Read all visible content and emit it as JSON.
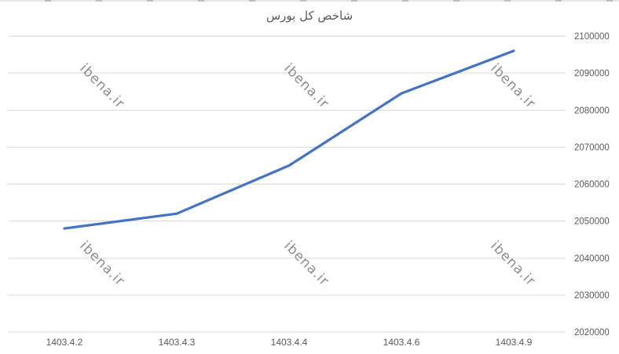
{
  "watermark": {
    "text": "ibena.ir",
    "color": "#8c8c8c"
  },
  "chart_data": {
    "type": "line",
    "title": "شاخص کل بورس",
    "categories": [
      "1403.4.2",
      "1403.4.3",
      "1403.4.4",
      "1403.4.6",
      "1403.4.9"
    ],
    "values": [
      2048000,
      2052000,
      2065000,
      2084500,
      2096000
    ],
    "xlabel": "",
    "ylabel": "",
    "ylim": [
      2020000,
      2100000
    ],
    "ytick_step": 10000,
    "ytick_labels": [
      "2020000",
      "2030000",
      "2040000",
      "2050000",
      "2060000",
      "2070000",
      "2080000",
      "2090000",
      "2100000"
    ],
    "yaxis_side": "right",
    "grid": "horizontal",
    "legend_position": "none",
    "line_color": "#4472C4",
    "gridline_color": "#D9D9D9",
    "axis_label_color": "#595959"
  }
}
